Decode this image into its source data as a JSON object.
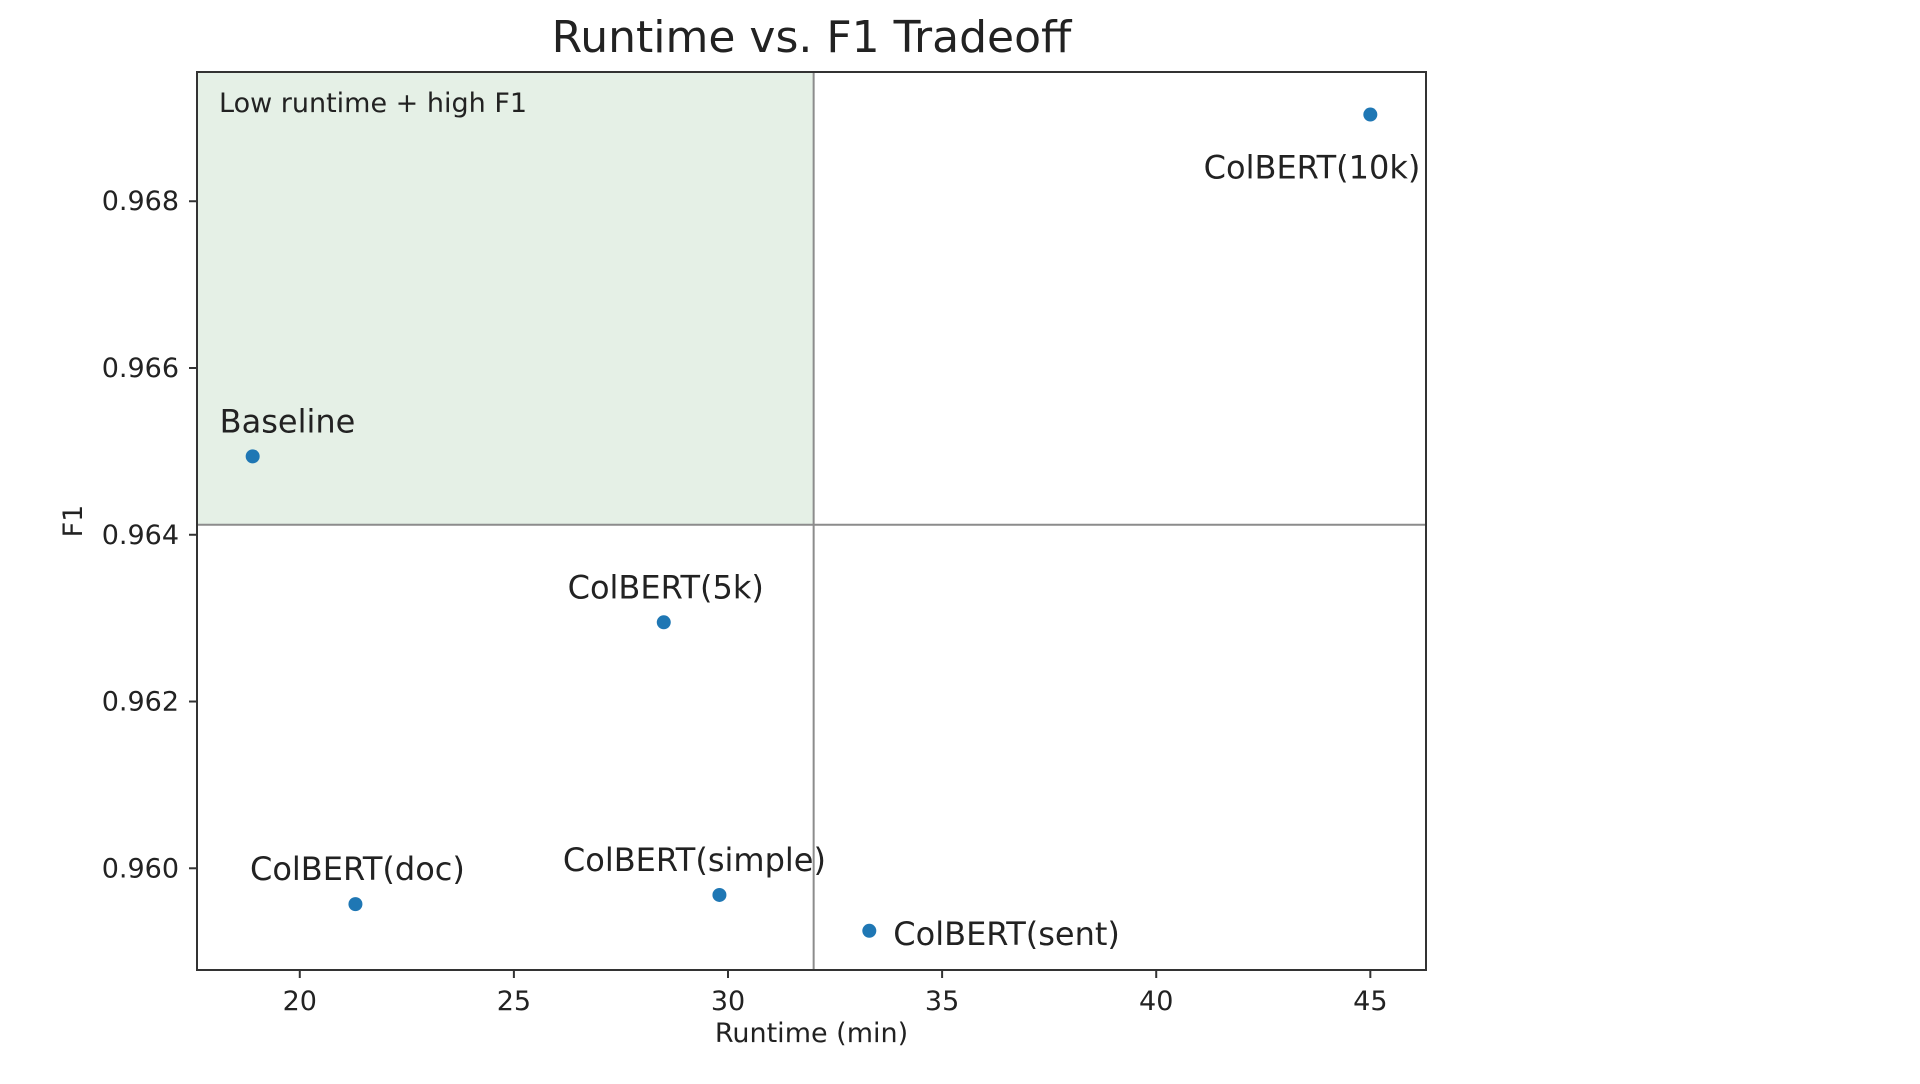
{
  "chart_data": {
    "type": "scatter",
    "title": "Runtime vs. F1 Tradeoff",
    "xlabel": "Runtime (min)",
    "ylabel": "F1",
    "xlim": [
      17.6,
      46.3
    ],
    "ylim": [
      0.95878,
      0.96955
    ],
    "xticks": [
      20,
      25,
      30,
      35,
      40,
      45
    ],
    "yticks": [
      0.96,
      0.962,
      0.964,
      0.966,
      0.968
    ],
    "xtick_labels": [
      "20",
      "25",
      "30",
      "35",
      "40",
      "45"
    ],
    "ytick_labels": [
      "0.960",
      "0.962",
      "0.964",
      "0.966",
      "0.968"
    ],
    "grid": false,
    "quadrant_lines": {
      "x": 32,
      "y": 0.96412
    },
    "highlight_region": {
      "label": "Low runtime + high F1",
      "x_range": [
        17.6,
        32
      ],
      "y_range": [
        0.96412,
        0.96955
      ],
      "color": "#e5f0e6"
    },
    "point_color": "#1f77b4",
    "points": [
      {
        "label": "Baseline",
        "x": 18.9,
        "y": 0.96494,
        "label_pos": "above-left"
      },
      {
        "label": "ColBERT(5k)",
        "x": 28.5,
        "y": 0.96295,
        "label_pos": "above"
      },
      {
        "label": "ColBERT(doc)",
        "x": 21.3,
        "y": 0.95957,
        "label_pos": "above"
      },
      {
        "label": "ColBERT(simple)",
        "x": 29.8,
        "y": 0.95968,
        "label_pos": "above-left"
      },
      {
        "label": "ColBERT(sent)",
        "x": 33.3,
        "y": 0.95925,
        "label_pos": "right"
      },
      {
        "label": "ColBERT(10k)",
        "x": 45.0,
        "y": 0.96904,
        "label_pos": "below-left"
      }
    ]
  }
}
